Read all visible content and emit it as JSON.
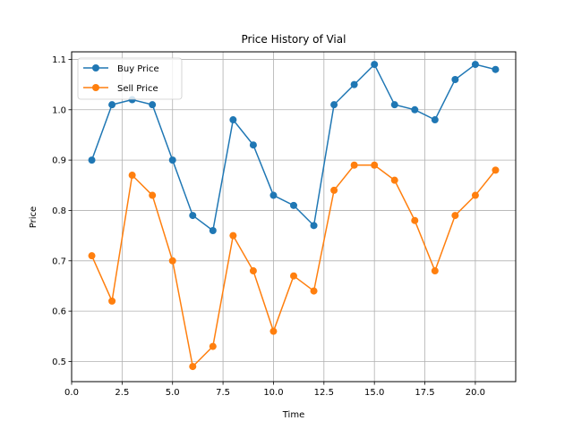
{
  "chart_data": {
    "type": "line",
    "title": "Price History of Vial",
    "xlabel": "Time",
    "ylabel": "Price",
    "xlim": [
      0,
      22
    ],
    "ylim": [
      0.46,
      1.115
    ],
    "xticks": [
      0,
      2.5,
      5,
      7.5,
      10,
      12.5,
      15,
      17.5,
      20
    ],
    "xtick_labels": [
      "0.0",
      "2.5",
      "5.0",
      "7.5",
      "10.0",
      "12.5",
      "15.0",
      "17.5",
      "20.0"
    ],
    "yticks": [
      0.5,
      0.6,
      0.7,
      0.8,
      0.9,
      1.0,
      1.1
    ],
    "ytick_labels": [
      "0.5",
      "0.6",
      "0.7",
      "0.8",
      "0.9",
      "1.0",
      "1.1"
    ],
    "grid": true,
    "legend_position": "top-left",
    "x": [
      1,
      2,
      3,
      4,
      5,
      6,
      7,
      8,
      9,
      10,
      11,
      12,
      13,
      14,
      15,
      16,
      17,
      18,
      19,
      20,
      21
    ],
    "series": [
      {
        "name": "Buy Price",
        "color": "#1f77b4",
        "values": [
          0.9,
          1.01,
          1.02,
          1.01,
          0.9,
          0.79,
          0.76,
          0.98,
          0.93,
          0.83,
          0.81,
          0.77,
          1.01,
          1.05,
          1.09,
          1.01,
          1.0,
          0.98,
          1.06,
          1.09,
          1.08
        ]
      },
      {
        "name": "Sell Price",
        "color": "#ff7f0e",
        "values": [
          0.71,
          0.62,
          0.87,
          0.83,
          0.7,
          0.49,
          0.53,
          0.75,
          0.68,
          0.56,
          0.67,
          0.64,
          0.84,
          0.89,
          0.89,
          0.86,
          0.78,
          0.68,
          0.79,
          0.83,
          0.88
        ]
      }
    ]
  }
}
